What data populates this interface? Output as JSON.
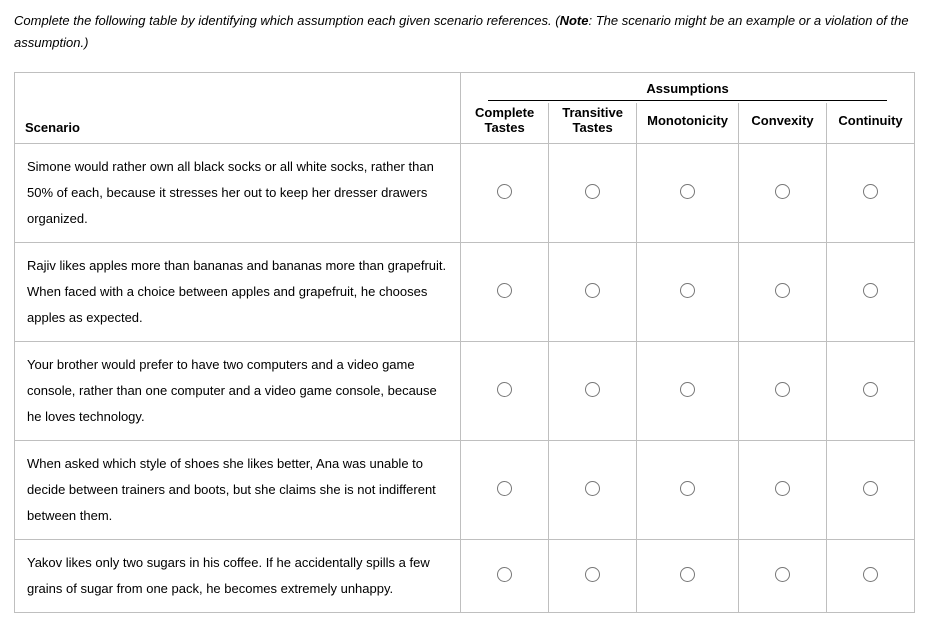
{
  "instruction": {
    "prefix": "Complete the following table by identifying which assumption each given scenario references. (",
    "note_label": "Note",
    "suffix": ": The scenario might be an example or a violation of the assumption.)"
  },
  "table": {
    "scenario_header": "Scenario",
    "assumptions_group": "Assumptions",
    "columns": [
      "Complete Tastes",
      "Transitive Tastes",
      "Monotonicity",
      "Convexity",
      "Continuity"
    ],
    "rows": [
      "Simone would rather own all black socks or all white socks, rather than 50% of each, because it stresses her out to keep her dresser drawers organized.",
      "Rajiv likes apples more than bananas and bananas more than grapefruit. When faced with a choice between apples and grapefruit, he chooses apples as expected.",
      "Your brother would prefer to have two computers and a video game console, rather than one computer and a video game console, because he loves technology.",
      "When asked which style of shoes she likes better, Ana was unable to decide between trainers and boots, but she claims she is not indifferent between them.",
      "Yakov likes only two sugars in his coffee. If he accidentally spills a few grains of sugar from one pack, he becomes extremely unhappy."
    ]
  }
}
